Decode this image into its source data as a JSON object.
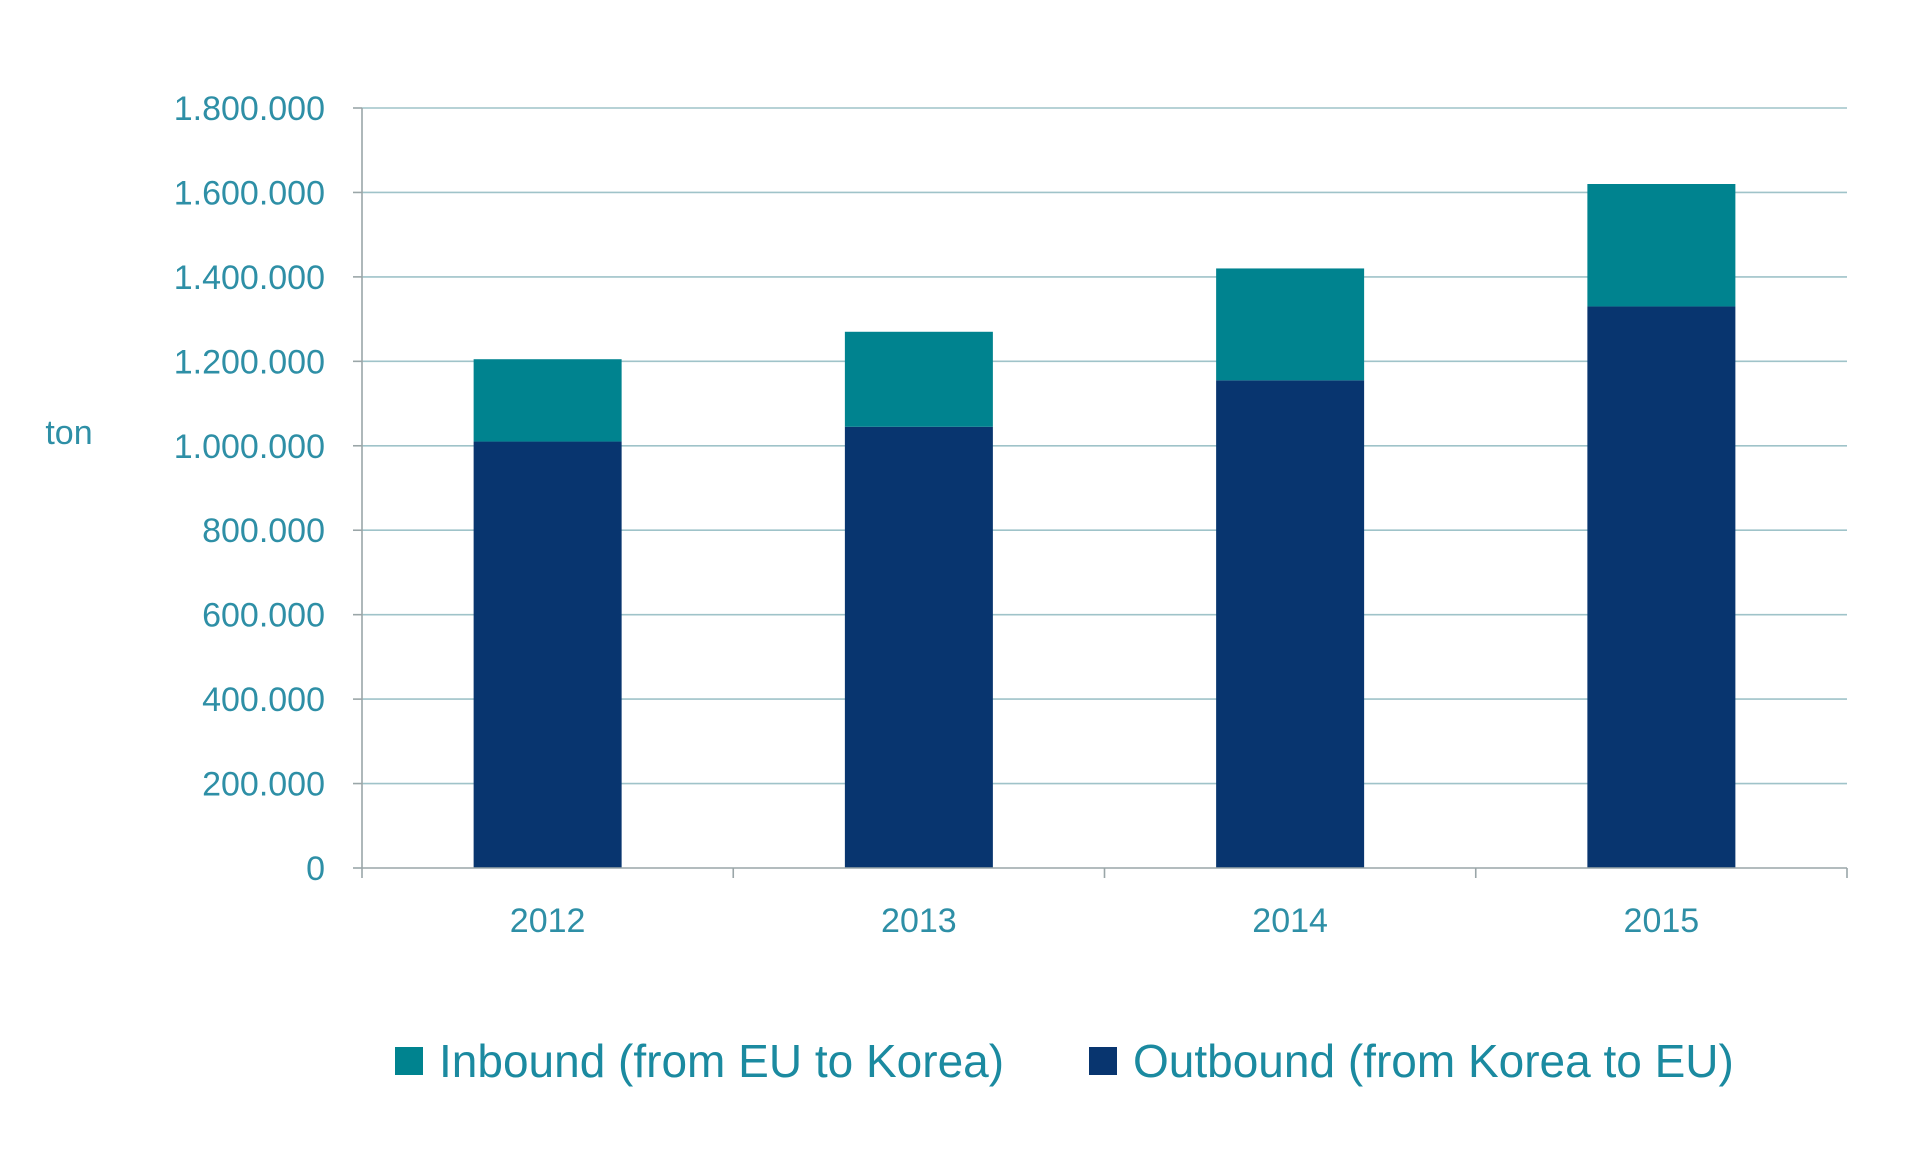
{
  "chart_data": {
    "type": "bar",
    "stacked": true,
    "title": "",
    "xlabel": "",
    "ylabel": "ton",
    "categories": [
      "2012",
      "2013",
      "2014",
      "2015"
    ],
    "ylim": [
      0,
      1800000
    ],
    "yticks": [
      0,
      200000,
      400000,
      600000,
      800000,
      1000000,
      1200000,
      1400000,
      1600000,
      1800000
    ],
    "ytick_labels": [
      "0",
      "200.000",
      "400.000",
      "600.000",
      "800.000",
      "1.000.000",
      "1.200.000",
      "1.400.000",
      "1.600.000",
      "1.800.000"
    ],
    "grid": true,
    "legend_position": "bottom",
    "series": [
      {
        "name": "Outbound (from Korea to EU)",
        "color": "#08356f",
        "values": [
          1010000,
          1045000,
          1155000,
          1330000
        ]
      },
      {
        "name": "Inbound (from EU to Korea)",
        "color": "#00838f",
        "values": [
          195000,
          225000,
          265000,
          290000
        ]
      }
    ],
    "legend_order": [
      "Inbound (from EU to Korea)",
      "Outbound (from Korea to EU)"
    ]
  },
  "colors": {
    "label_text": "#2e8fa6",
    "gridline": "#9fc3c9",
    "axis": "#9aa6a8"
  }
}
